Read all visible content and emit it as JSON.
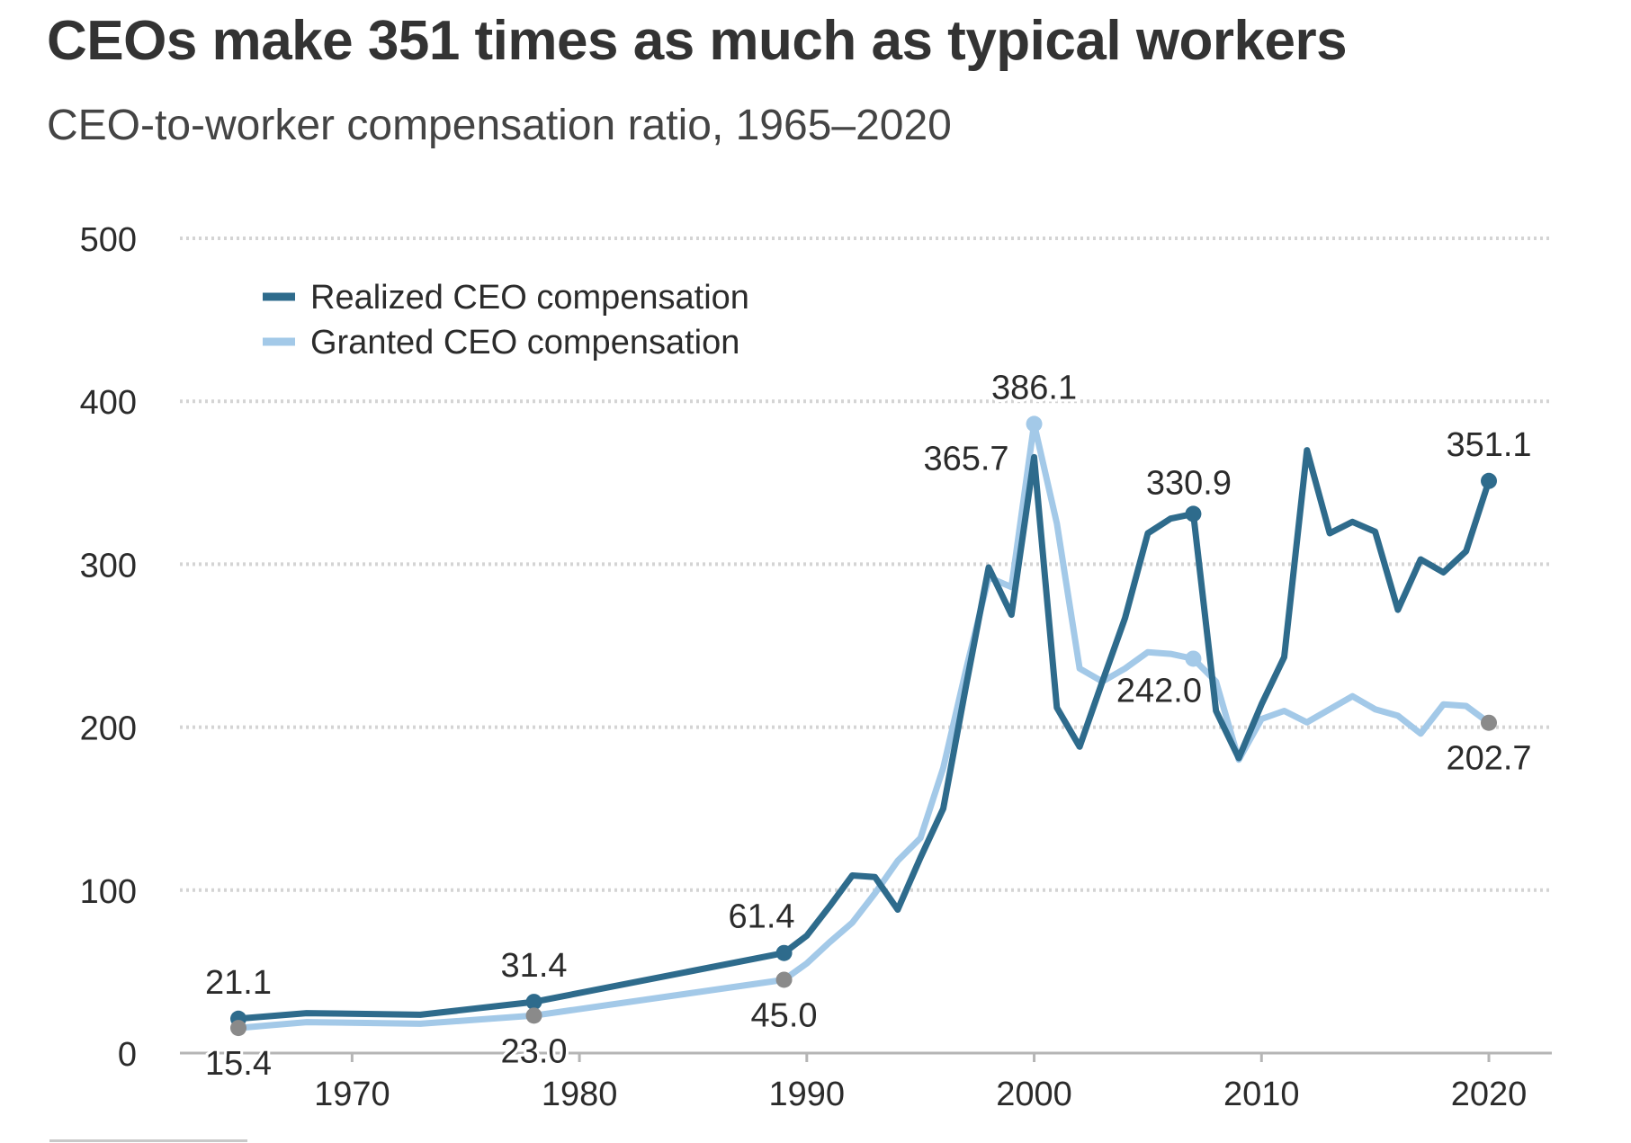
{
  "header": {
    "title": "CEOs make 351 times as much as typical workers",
    "subtitle": "CEO-to-worker compensation ratio, 1965–2020"
  },
  "colors": {
    "realized": "#2e6b8c",
    "granted": "#a3c9e8",
    "grid": "#d4d4d4",
    "axis": "#b5b5b5",
    "marker_gray": "#8a8a8a",
    "text": "#2b2b2b"
  },
  "chart_data": {
    "type": "line",
    "ylim": [
      0,
      500
    ],
    "yticks": [
      0,
      100,
      200,
      300,
      400,
      500
    ],
    "xlim": [
      1965,
      2020
    ],
    "xticks": [
      1970,
      1980,
      1990,
      2000,
      2010,
      2020
    ],
    "grid": true,
    "legend_position": "top-left",
    "series": [
      {
        "name": "Realized CEO compensation",
        "color": "#2e6b8c",
        "points": [
          [
            1965,
            21.1
          ],
          [
            1968,
            24.5
          ],
          [
            1973,
            23.5
          ],
          [
            1978,
            31.4
          ],
          [
            1989,
            61.4
          ],
          [
            1990,
            72
          ],
          [
            1991,
            90
          ],
          [
            1992,
            109
          ],
          [
            1993,
            108
          ],
          [
            1994,
            88
          ],
          [
            1995,
            120
          ],
          [
            1996,
            150
          ],
          [
            1997,
            225
          ],
          [
            1998,
            298
          ],
          [
            1999,
            269
          ],
          [
            2000,
            365.7
          ],
          [
            2001,
            212
          ],
          [
            2002,
            188
          ],
          [
            2003,
            228
          ],
          [
            2004,
            267
          ],
          [
            2005,
            319
          ],
          [
            2006,
            328
          ],
          [
            2007,
            330.9
          ],
          [
            2008,
            210
          ],
          [
            2009,
            181
          ],
          [
            2010,
            214
          ],
          [
            2011,
            243
          ],
          [
            2012,
            370
          ],
          [
            2013,
            319
          ],
          [
            2014,
            326
          ],
          [
            2015,
            320
          ],
          [
            2016,
            272
          ],
          [
            2017,
            303
          ],
          [
            2018,
            295
          ],
          [
            2019,
            308
          ],
          [
            2020,
            351.1
          ]
        ]
      },
      {
        "name": "Granted CEO compensation",
        "color": "#a3c9e8",
        "points": [
          [
            1965,
            15.4
          ],
          [
            1968,
            19
          ],
          [
            1973,
            18
          ],
          [
            1978,
            23.0
          ],
          [
            1989,
            45.0
          ],
          [
            1990,
            55
          ],
          [
            1991,
            68
          ],
          [
            1992,
            80
          ],
          [
            1993,
            98
          ],
          [
            1994,
            118
          ],
          [
            1995,
            132
          ],
          [
            1996,
            175
          ],
          [
            1997,
            235
          ],
          [
            1998,
            292
          ],
          [
            1999,
            286
          ],
          [
            2000,
            386.1
          ],
          [
            2001,
            325
          ],
          [
            2002,
            236
          ],
          [
            2003,
            228
          ],
          [
            2004,
            236
          ],
          [
            2005,
            246
          ],
          [
            2006,
            245
          ],
          [
            2007,
            242.0
          ],
          [
            2008,
            228
          ],
          [
            2009,
            180
          ],
          [
            2010,
            205
          ],
          [
            2011,
            210
          ],
          [
            2012,
            203
          ],
          [
            2013,
            211
          ],
          [
            2014,
            219
          ],
          [
            2015,
            211
          ],
          [
            2016,
            207
          ],
          [
            2017,
            196
          ],
          [
            2018,
            214
          ],
          [
            2019,
            213
          ],
          [
            2020,
            202.7
          ]
        ]
      }
    ],
    "annotations": [
      {
        "series": 0,
        "year": 1965,
        "value": 21.1,
        "label": "21.1",
        "pos": "above",
        "marker": "realized"
      },
      {
        "series": 1,
        "year": 1965,
        "value": 15.4,
        "label": "15.4",
        "pos": "below",
        "marker": "gray"
      },
      {
        "series": 0,
        "year": 1978,
        "value": 31.4,
        "label": "31.4",
        "pos": "above",
        "marker": "realized"
      },
      {
        "series": 1,
        "year": 1978,
        "value": 23.0,
        "label": "23.0",
        "pos": "below",
        "marker": "gray"
      },
      {
        "series": 0,
        "year": 1989,
        "value": 61.4,
        "label": "61.4",
        "pos": "above-left",
        "marker": "realized"
      },
      {
        "series": 1,
        "year": 1989,
        "value": 45.0,
        "label": "45.0",
        "pos": "below",
        "marker": "gray"
      },
      {
        "series": 0,
        "year": 2000,
        "value": 365.7,
        "label": "365.7",
        "pos": "left",
        "marker": "none"
      },
      {
        "series": 1,
        "year": 2000,
        "value": 386.1,
        "label": "386.1",
        "pos": "above",
        "marker": "granted"
      },
      {
        "series": 0,
        "year": 2007,
        "value": 330.9,
        "label": "330.9",
        "pos": "above-left",
        "marker": "realized"
      },
      {
        "series": 1,
        "year": 2007,
        "value": 242.0,
        "label": "242.0",
        "pos": "below-left",
        "marker": "granted"
      },
      {
        "series": 0,
        "year": 2020,
        "value": 351.1,
        "label": "351.1",
        "pos": "above",
        "marker": "realized"
      },
      {
        "series": 1,
        "year": 2020,
        "value": 202.7,
        "label": "202.7",
        "pos": "below",
        "marker": "gray"
      }
    ]
  }
}
